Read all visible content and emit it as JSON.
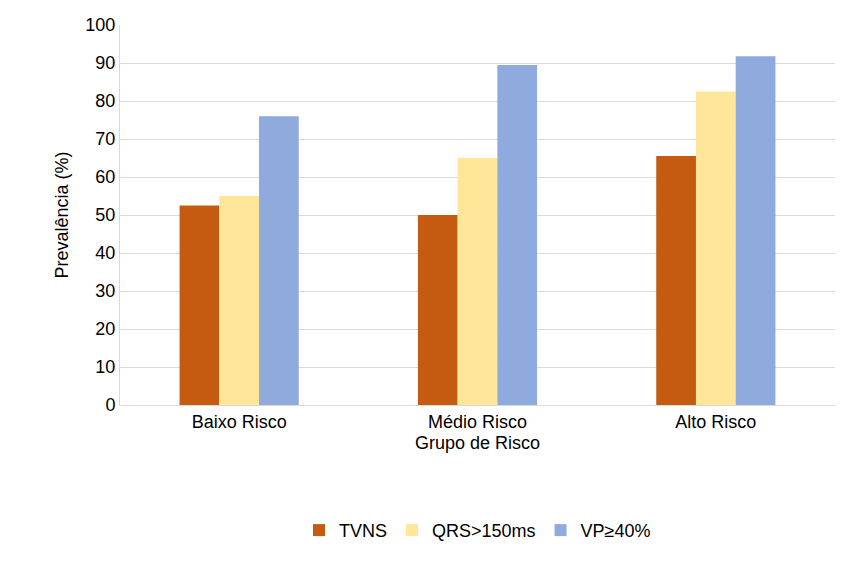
{
  "chart_data": {
    "type": "bar",
    "x_label": "Grupo de Risco",
    "y_label": "Prevalência (%)",
    "categories": [
      "Baixo Risco",
      "Médio Risco",
      "Alto Risco"
    ],
    "series": [
      {
        "name": "TVNS",
        "color": "#C55A11",
        "values": [
          52.5,
          50,
          65.5
        ]
      },
      {
        "name": "QRS>150ms",
        "color": "#FFE699",
        "values": [
          55,
          65,
          82.5
        ]
      },
      {
        "name": "VP≥40%",
        "color": "#8FAADC",
        "values": [
          76,
          89.5,
          91.8
        ]
      }
    ],
    "ylim": [
      0,
      100
    ],
    "yticks": [
      0,
      10,
      20,
      30,
      40,
      50,
      60,
      70,
      80,
      90,
      100
    ],
    "grid": true,
    "legend": "bottom"
  }
}
